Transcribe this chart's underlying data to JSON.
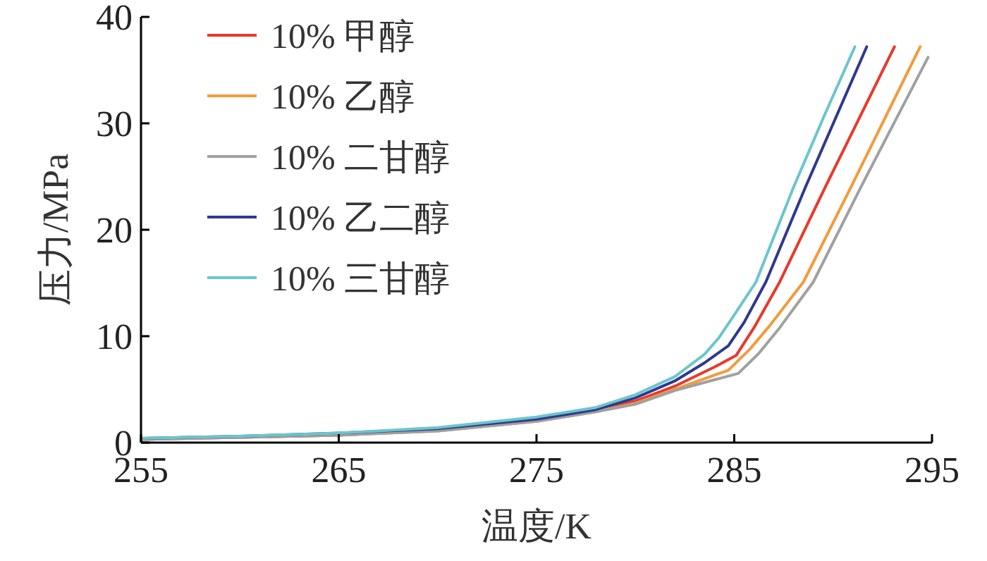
{
  "chart_data": {
    "type": "line",
    "xlabel": "温度/K",
    "ylabel": "压力/MPa",
    "xlim": [
      255,
      295
    ],
    "ylim": [
      0,
      40
    ],
    "xticks": [
      255,
      265,
      275,
      285,
      295
    ],
    "yticks": [
      0,
      10,
      20,
      30,
      40
    ],
    "grid": false,
    "legend": "top left",
    "marker": "none",
    "line_style": "solid",
    "series": [
      {
        "name": "10% 甲醇",
        "color": "#e8392a",
        "x": [
          255,
          260,
          265,
          270,
          275,
          278,
          280,
          282,
          284,
          285.1,
          286,
          287.3,
          289.6,
          293.1
        ],
        "values": [
          0.3,
          0.5,
          0.7,
          1.2,
          2.1,
          null,
          3.9,
          5.3,
          7.1,
          8.2,
          10.8,
          15.1,
          24,
          37.2
        ]
      },
      {
        "name": "10% 乙醇",
        "color": "#f39a3c",
        "x": [
          255,
          260,
          265,
          270,
          275,
          278,
          280,
          282,
          284.7,
          285.8,
          286.8,
          288.5,
          290.9,
          294.4
        ],
        "values": [
          0.3,
          0.5,
          0.7,
          1.1,
          2.0,
          2.9,
          3.7,
          5.0,
          6.8,
          8.8,
          11,
          15.1,
          24,
          37.2
        ]
      },
      {
        "name": "10% 二甘醇",
        "color": "#a0a0a0",
        "x": [
          255,
          260,
          265,
          270,
          275,
          278,
          280,
          282,
          285.2,
          286.2,
          287.3,
          289,
          291.4,
          294.8
        ],
        "values": [
          0.3,
          0.5,
          0.7,
          1.1,
          2.0,
          2.9,
          3.6,
          4.9,
          6.5,
          8.3,
          10.8,
          15.1,
          24,
          36.2
        ]
      },
      {
        "name": "10% 乙二醇",
        "color": "#2e3a8f",
        "x": [
          255,
          260,
          265,
          270,
          275,
          278,
          280,
          282,
          283.5,
          284.7,
          285.5,
          286.6,
          288.6,
          291.7
        ],
        "values": [
          0.4,
          0.6,
          0.9,
          1.3,
          2.2,
          3.1,
          4.2,
          5.8,
          7.5,
          9.1,
          11.3,
          15.1,
          24,
          37.2
        ]
      },
      {
        "name": "10% 三甘醇",
        "color": "#6cc5cc",
        "x": [
          255,
          260,
          265,
          270,
          275,
          278,
          280,
          282,
          283.5,
          284.2,
          285,
          286.1,
          288,
          289.5,
          291.1
        ],
        "values": [
          0.4,
          0.6,
          0.9,
          1.4,
          2.4,
          3.3,
          4.5,
          6.2,
          8.3,
          9.8,
          12,
          15.1,
          24,
          30.5,
          37.2
        ]
      }
    ]
  }
}
